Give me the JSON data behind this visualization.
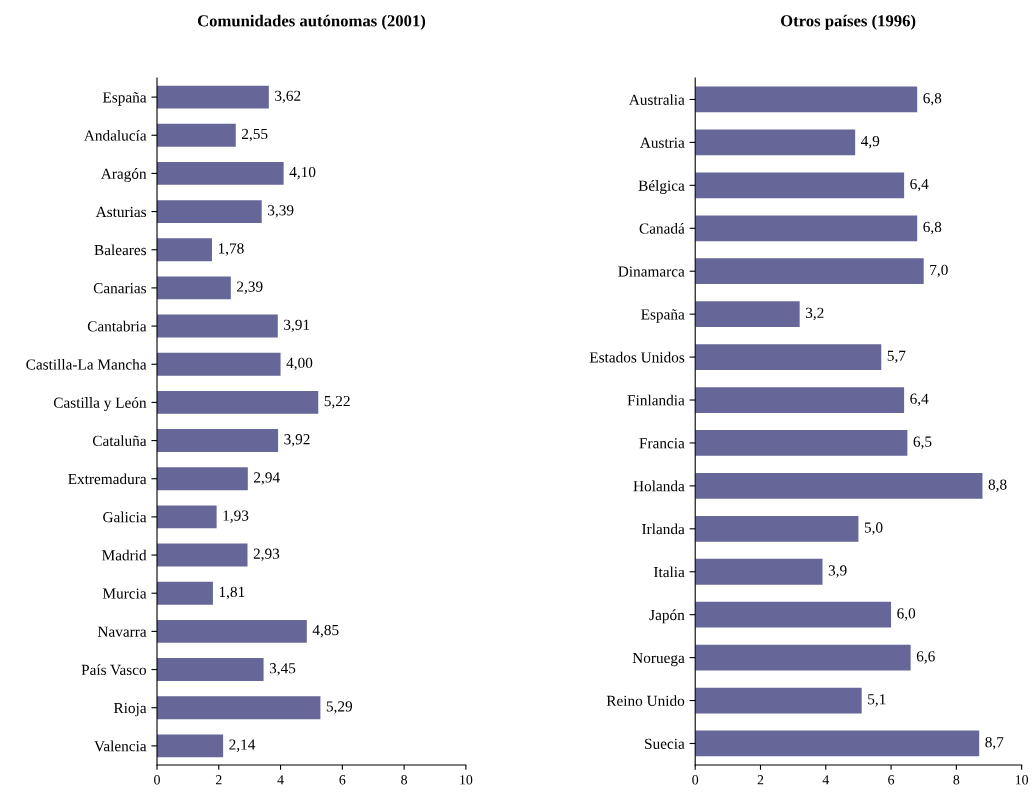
{
  "chart_data": [
    {
      "type": "bar",
      "orientation": "horizontal",
      "title": "Comunidades autónomas (2001)",
      "categories": [
        "España",
        "Andalucía",
        "Aragón",
        "Asturias",
        "Baleares",
        "Canarias",
        "Cantabria",
        "Castilla-La Mancha",
        "Castilla y León",
        "Cataluña",
        "Extremadura",
        "Galicia",
        "Madrid",
        "Murcia",
        "Navarra",
        "País Vasco",
        "Rioja",
        "Valencia"
      ],
      "values": [
        3.62,
        2.55,
        4.1,
        3.39,
        1.78,
        2.39,
        3.91,
        4.0,
        5.22,
        3.92,
        2.94,
        1.93,
        2.93,
        1.81,
        4.85,
        3.45,
        5.29,
        2.14
      ],
      "value_labels": [
        "3,62",
        "2,55",
        "4,10",
        "3,39",
        "1,78",
        "2,39",
        "3,91",
        "4,00",
        "5,22",
        "3,92",
        "2,94",
        "1,93",
        "2,93",
        "1,81",
        "4,85",
        "3,45",
        "5,29",
        "2,14"
      ],
      "color": "#666699",
      "xlim": [
        0,
        10
      ],
      "xticks": [
        0,
        2,
        4,
        6,
        8,
        10
      ],
      "grid": false,
      "legend": false
    },
    {
      "type": "bar",
      "orientation": "horizontal",
      "title": "Otros países (1996)",
      "categories": [
        "Australia",
        "Austria",
        "Bélgica",
        "Canadá",
        "Dinamarca",
        "España",
        "Estados Unidos",
        "Finlandia",
        "Francia",
        "Holanda",
        "Irlanda",
        "Italia",
        "Japón",
        "Noruega",
        "Reino Unido",
        "Suecia"
      ],
      "values": [
        6.8,
        4.9,
        6.4,
        6.8,
        7.0,
        3.2,
        5.7,
        6.4,
        6.5,
        8.8,
        5.0,
        3.9,
        6.0,
        6.6,
        5.1,
        8.7
      ],
      "value_labels": [
        "6,8",
        "4,9",
        "6,4",
        "6,8",
        "7,0",
        "3,2",
        "5,7",
        "6,4",
        "6,5",
        "8,8",
        "5,0",
        "3,9",
        "6,0",
        "6,6",
        "5,1",
        "8,7"
      ],
      "color": "#666699",
      "xlim": [
        0,
        10
      ],
      "xticks": [
        0,
        2,
        4,
        6,
        8,
        10
      ],
      "grid": false,
      "legend": false
    }
  ]
}
